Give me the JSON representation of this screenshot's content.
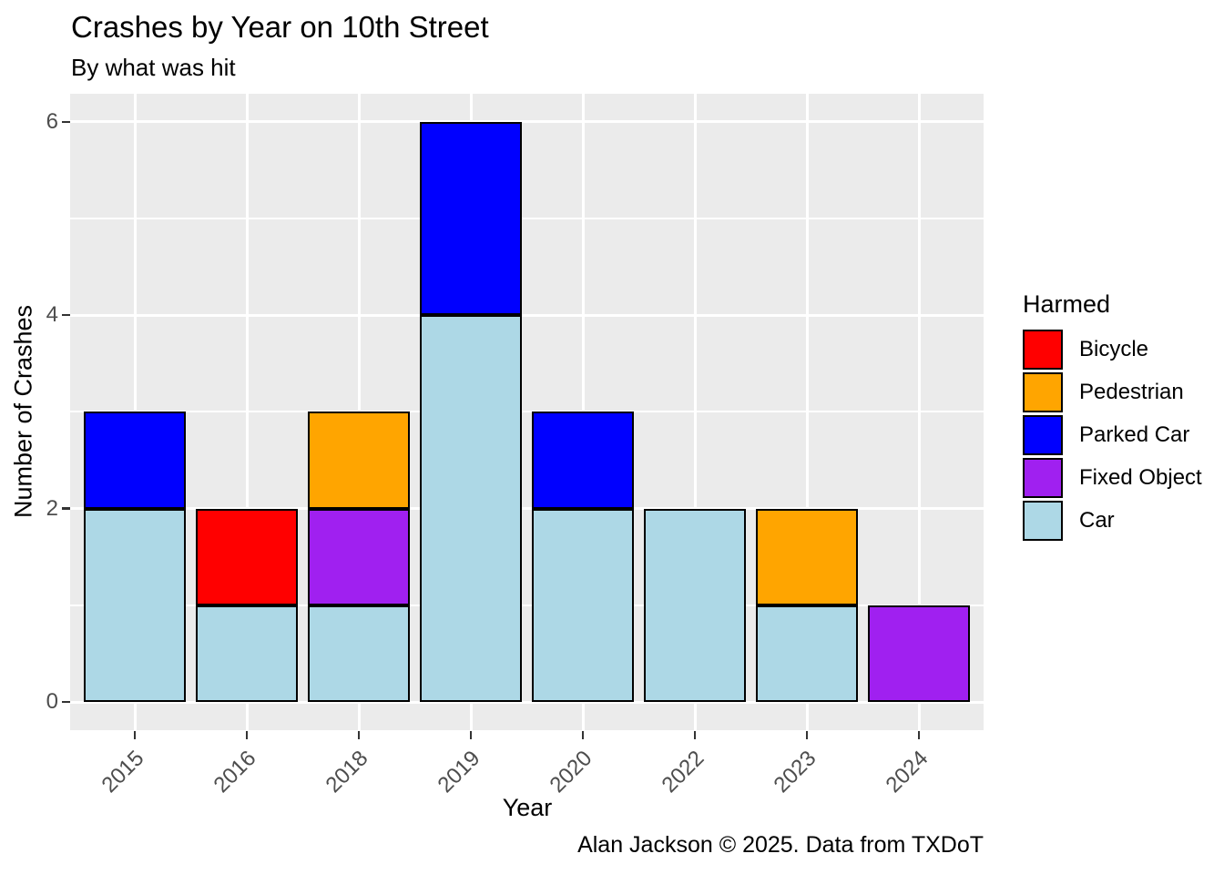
{
  "chart_data": {
    "type": "bar",
    "stacked": true,
    "title": "Crashes by Year on 10th Street",
    "subtitle": "By what was hit",
    "caption": "Alan Jackson © 2025. Data from TXDoT",
    "xlabel": "Year",
    "ylabel": "Number of Crashes",
    "categories": [
      "2015",
      "2016",
      "2018",
      "2019",
      "2020",
      "2022",
      "2023",
      "2024"
    ],
    "series": [
      {
        "name": "Bicycle",
        "color": "#FF0000",
        "values": [
          0,
          1,
          0,
          0,
          0,
          0,
          0,
          0
        ]
      },
      {
        "name": "Pedestrian",
        "color": "#FFA500",
        "values": [
          0,
          0,
          1,
          0,
          0,
          0,
          1,
          0
        ]
      },
      {
        "name": "Parked Car",
        "color": "#0000FF",
        "values": [
          1,
          0,
          0,
          2,
          1,
          0,
          0,
          0
        ]
      },
      {
        "name": "Fixed Object",
        "color": "#A020F0",
        "values": [
          0,
          0,
          1,
          0,
          0,
          0,
          0,
          1
        ]
      },
      {
        "name": "Car",
        "color": "#ADD8E6",
        "values": [
          2,
          1,
          1,
          4,
          2,
          2,
          1,
          0
        ]
      }
    ],
    "stack_order_bottom_to_top": [
      "Car",
      "Fixed Object",
      "Parked Car",
      "Pedestrian",
      "Bicycle"
    ],
    "totals_by_category": [
      3,
      2,
      3,
      6,
      3,
      2,
      2,
      1
    ],
    "ylim": [
      0,
      6
    ],
    "y_major_ticks": [
      0,
      2,
      4,
      6
    ],
    "y_minor_ticks": [
      1,
      3,
      5
    ],
    "x_tick_rotation_deg": 45,
    "grid": true,
    "legend": {
      "title": "Harmed",
      "position": "right"
    },
    "theme_colors": {
      "panel_background": "#EBEBEB",
      "gridline": "#FFFFFF",
      "axis_text": "#4D4D4D",
      "tick_mark": "#333333",
      "bar_border": "#000000",
      "text": "#000000",
      "figure_background": "#FFFFFF"
    }
  }
}
